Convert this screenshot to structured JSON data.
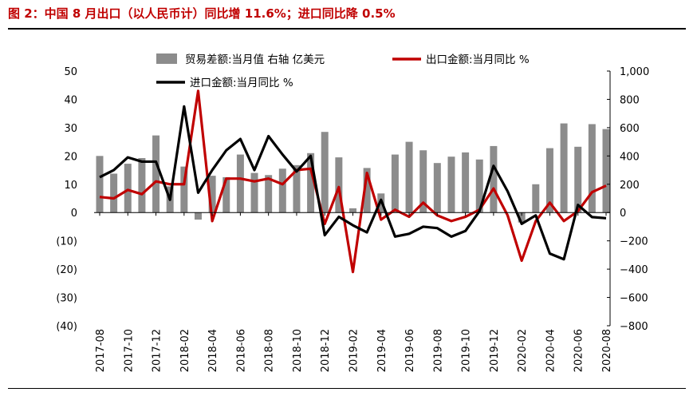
{
  "figure_title": "图 2：中国 8 月出口（以人民币计）同比增 11.6%；进口同比降 0.5%",
  "chart_data": {
    "type": "bar",
    "categories": [
      "2017-08",
      "2017-09",
      "2017-10",
      "2017-11",
      "2017-12",
      "2018-01",
      "2018-02",
      "2018-03",
      "2018-04",
      "2018-05",
      "2018-06",
      "2018-07",
      "2018-08",
      "2018-09",
      "2018-10",
      "2018-11",
      "2018-12",
      "2019-01",
      "2019-02",
      "2019-03",
      "2019-04",
      "2019-05",
      "2019-06",
      "2019-07",
      "2019-08",
      "2019-09",
      "2019-10",
      "2019-11",
      "2019-12",
      "2020-01",
      "2020-02",
      "2020-03",
      "2020-04",
      "2020-05",
      "2020-06",
      "2020-07",
      "2020-08"
    ],
    "x_tick_labels": [
      "2017-08",
      "2017-10",
      "2017-12",
      "2018-02",
      "2018-04",
      "2018-06",
      "2018-08",
      "2018-10",
      "2018-12",
      "2019-02",
      "2019-04",
      "2019-06",
      "2019-08",
      "2019-10",
      "2019-12",
      "2020-02",
      "2020-04",
      "2020-06",
      "2020-08"
    ],
    "left_axis": {
      "ylim": [
        -40,
        50
      ],
      "ticks": [
        -40,
        -30,
        -20,
        -10,
        0,
        10,
        20,
        30,
        40,
        50
      ],
      "tick_labels": [
        "(40)",
        "(30)",
        "(20)",
        "(10)",
        "0",
        "10",
        "20",
        "30",
        "40",
        "50"
      ]
    },
    "right_axis": {
      "ylim": [
        -800,
        1000
      ],
      "ticks": [
        -800,
        -600,
        -400,
        -200,
        0,
        200,
        400,
        600,
        800,
        1000
      ],
      "tick_labels": [
        "−800",
        "−600",
        "−400",
        "−200",
        "0",
        "200",
        "400",
        "600",
        "800",
        "1,000"
      ]
    },
    "series": [
      {
        "name": "贸易差额:当月值 右轴 亿美元",
        "kind": "bar",
        "axis": "right",
        "color": "#8c8c8c",
        "values": [
          400,
          275,
          345,
          385,
          545,
          185,
          325,
          -50,
          260,
          250,
          410,
          280,
          265,
          310,
          335,
          420,
          570,
          390,
          30,
          315,
          135,
          410,
          500,
          440,
          350,
          395,
          425,
          375,
          470,
          null,
          -70,
          200,
          455,
          630,
          465,
          625,
          590
        ]
      },
      {
        "name": "出口金额:当月同比 %",
        "kind": "line",
        "axis": "left",
        "color": "#c00000",
        "values": [
          5.5,
          5,
          8,
          6.5,
          11,
          10,
          10,
          43,
          -3,
          12,
          12,
          11,
          12,
          10,
          15,
          15.5,
          -4,
          9,
          -21,
          14,
          -2.5,
          1,
          -1.5,
          3.5,
          -1,
          -3,
          -1.5,
          1,
          8.5,
          -1,
          -17,
          -3,
          3.5,
          -3,
          0.5,
          7.2,
          9.5
        ]
      },
      {
        "name": "进口金额:当月同比 %",
        "kind": "line",
        "axis": "left",
        "color": "#000000",
        "values": [
          12.5,
          15,
          19.5,
          18,
          18,
          4.5,
          37.5,
          7,
          15,
          22,
          26,
          15,
          27,
          20.5,
          14.5,
          20,
          -8,
          -1.5,
          -4.5,
          -7,
          4.5,
          -8.5,
          -7.5,
          -5,
          -5.5,
          -8.5,
          -6.5,
          0.5,
          16.5,
          7.5,
          -4,
          -1,
          -14.5,
          -16.5,
          2.7,
          -1.6,
          -2
        ]
      }
    ]
  }
}
